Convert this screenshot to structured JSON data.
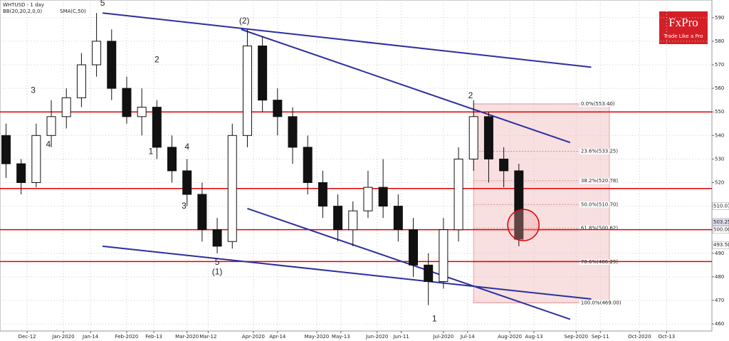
{
  "chart_data": {
    "type": "candlestick",
    "title": "WHTUSD - 1 day",
    "indicators": [
      "BB(20,20,2,0,0)",
      "SMA(C,50)"
    ],
    "logo": {
      "name": "FxPro",
      "tagline": "Trade Like a Pro"
    },
    "xlim": [
      0,
      236
    ],
    "ylim": [
      457,
      597.5
    ],
    "xticks": [
      {
        "value": 9,
        "label": "Dec-12"
      },
      {
        "value": 21,
        "label": "Jan-2020"
      },
      {
        "value": 30,
        "label": "Jan-14"
      },
      {
        "value": 42,
        "label": "Feb-2020"
      },
      {
        "value": 51,
        "label": "Feb-13"
      },
      {
        "value": 62,
        "label": "Mar-2020"
      },
      {
        "value": 69,
        "label": "Mar-12"
      },
      {
        "value": 84,
        "label": "Apr-2020"
      },
      {
        "value": 92,
        "label": "Apr-14"
      },
      {
        "value": 105,
        "label": "May-2020"
      },
      {
        "value": 113,
        "label": "May-13"
      },
      {
        "value": 125,
        "label": "Jun-2020"
      },
      {
        "value": 133,
        "label": "Jun-11"
      },
      {
        "value": 147,
        "label": "Jul-2020"
      },
      {
        "value": 155,
        "label": "Jul-14"
      },
      {
        "value": 169,
        "label": "Aug-2020"
      },
      {
        "value": 177,
        "label": "Aug-13"
      },
      {
        "value": 191,
        "label": "Sep-2020"
      },
      {
        "value": 199,
        "label": "Sep-11"
      },
      {
        "value": 212,
        "label": "Oct-2020"
      },
      {
        "value": 221,
        "label": "Oct-13"
      }
    ],
    "yticks": [
      460,
      470,
      480,
      490,
      500,
      510,
      520,
      530,
      540,
      550,
      560,
      570,
      580,
      590
    ],
    "grid": true,
    "x": [
      2,
      7,
      12,
      17,
      22,
      27,
      32,
      37,
      42,
      47,
      52,
      57,
      62,
      67,
      72,
      77,
      82,
      87,
      92,
      97,
      102,
      107,
      112,
      117,
      122,
      127,
      132,
      137,
      142,
      147,
      152,
      157,
      162,
      167,
      172
    ],
    "open": [
      540,
      528,
      520,
      540,
      548,
      556,
      570,
      580,
      560,
      548,
      552,
      535,
      525,
      515,
      500,
      495,
      540,
      578,
      555,
      548,
      535,
      520,
      510,
      500,
      508,
      518,
      510,
      500,
      485,
      478,
      500,
      530,
      548,
      530,
      525
    ],
    "high": [
      545,
      530,
      545,
      555,
      560,
      575,
      592,
      585,
      565,
      560,
      555,
      540,
      530,
      520,
      505,
      545,
      585,
      582,
      560,
      552,
      540,
      525,
      515,
      512,
      525,
      530,
      515,
      505,
      490,
      505,
      535,
      555,
      550,
      535,
      528
    ],
    "low": [
      522,
      515,
      518,
      535,
      543,
      552,
      565,
      555,
      545,
      540,
      530,
      520,
      510,
      495,
      490,
      492,
      535,
      550,
      540,
      528,
      515,
      505,
      495,
      493,
      505,
      505,
      495,
      480,
      468,
      475,
      495,
      525,
      520,
      518,
      493
    ],
    "close": [
      528,
      520,
      540,
      548,
      556,
      570,
      580,
      560,
      548,
      552,
      535,
      525,
      515,
      500,
      493,
      540,
      578,
      555,
      548,
      535,
      520,
      510,
      500,
      508,
      518,
      510,
      500,
      485,
      478,
      500,
      530,
      548,
      530,
      525,
      496
    ],
    "up_color": "#111111",
    "down_color": "#111111",
    "up_fill": "#ffffff",
    "down_fill": "#111111",
    "levels": [
      550,
      517.5,
      500,
      486.5
    ],
    "level_color": "#e00000",
    "trendlines": [
      [
        34,
        592,
        196,
        569
      ],
      [
        80,
        585,
        189,
        537
      ],
      [
        82,
        509,
        189,
        462
      ],
      [
        34,
        493,
        196,
        470.6
      ]
    ],
    "trend_color": "#2b2fa0",
    "fib": {
      "x": [
        157,
        202
      ],
      "levels": [
        {
          "value": 553.4,
          "label": "0.0%(553.40)"
        },
        {
          "value": 533.25,
          "label": "23.6%(533.25)"
        },
        {
          "value": 520.78,
          "label": "38.2%(520.78)"
        },
        {
          "value": 510.7,
          "label": "50.0%(510.70)"
        },
        {
          "value": 500.62,
          "label": "61.8%(500.62)"
        },
        {
          "value": 486.29,
          "label": "78.6%(486.29)"
        },
        {
          "value": 469,
          "label": "100.0%(469.00)"
        }
      ]
    },
    "price_tags": [
      {
        "value": 510.07,
        "label": "510.07"
      },
      {
        "value": 503.25,
        "label": "503.25"
      },
      {
        "value": 500,
        "label": "500.00"
      },
      {
        "value": 493.5,
        "label": "493.50"
      }
    ],
    "highlight": [
      173.5,
      502
    ],
    "annotations": [
      {
        "text": "5",
        "x": 34,
        "y": 596
      },
      {
        "text": "(2)",
        "x": 81,
        "y": 588.5
      },
      {
        "text": "2",
        "x": 156,
        "y": 556.8
      },
      {
        "text": "3",
        "x": 11,
        "y": 559
      },
      {
        "text": "4",
        "x": 16,
        "y": 536
      },
      {
        "text": "2",
        "x": 52,
        "y": 572
      },
      {
        "text": "1",
        "x": 50,
        "y": 533
      },
      {
        "text": "4",
        "x": 62,
        "y": 535
      },
      {
        "text": "3",
        "x": 61,
        "y": 510
      },
      {
        "text": "5",
        "x": 72,
        "y": 486
      },
      {
        "text": "(1)",
        "x": 72,
        "y": 482
      },
      {
        "text": "1",
        "x": 144,
        "y": 462
      }
    ]
  }
}
